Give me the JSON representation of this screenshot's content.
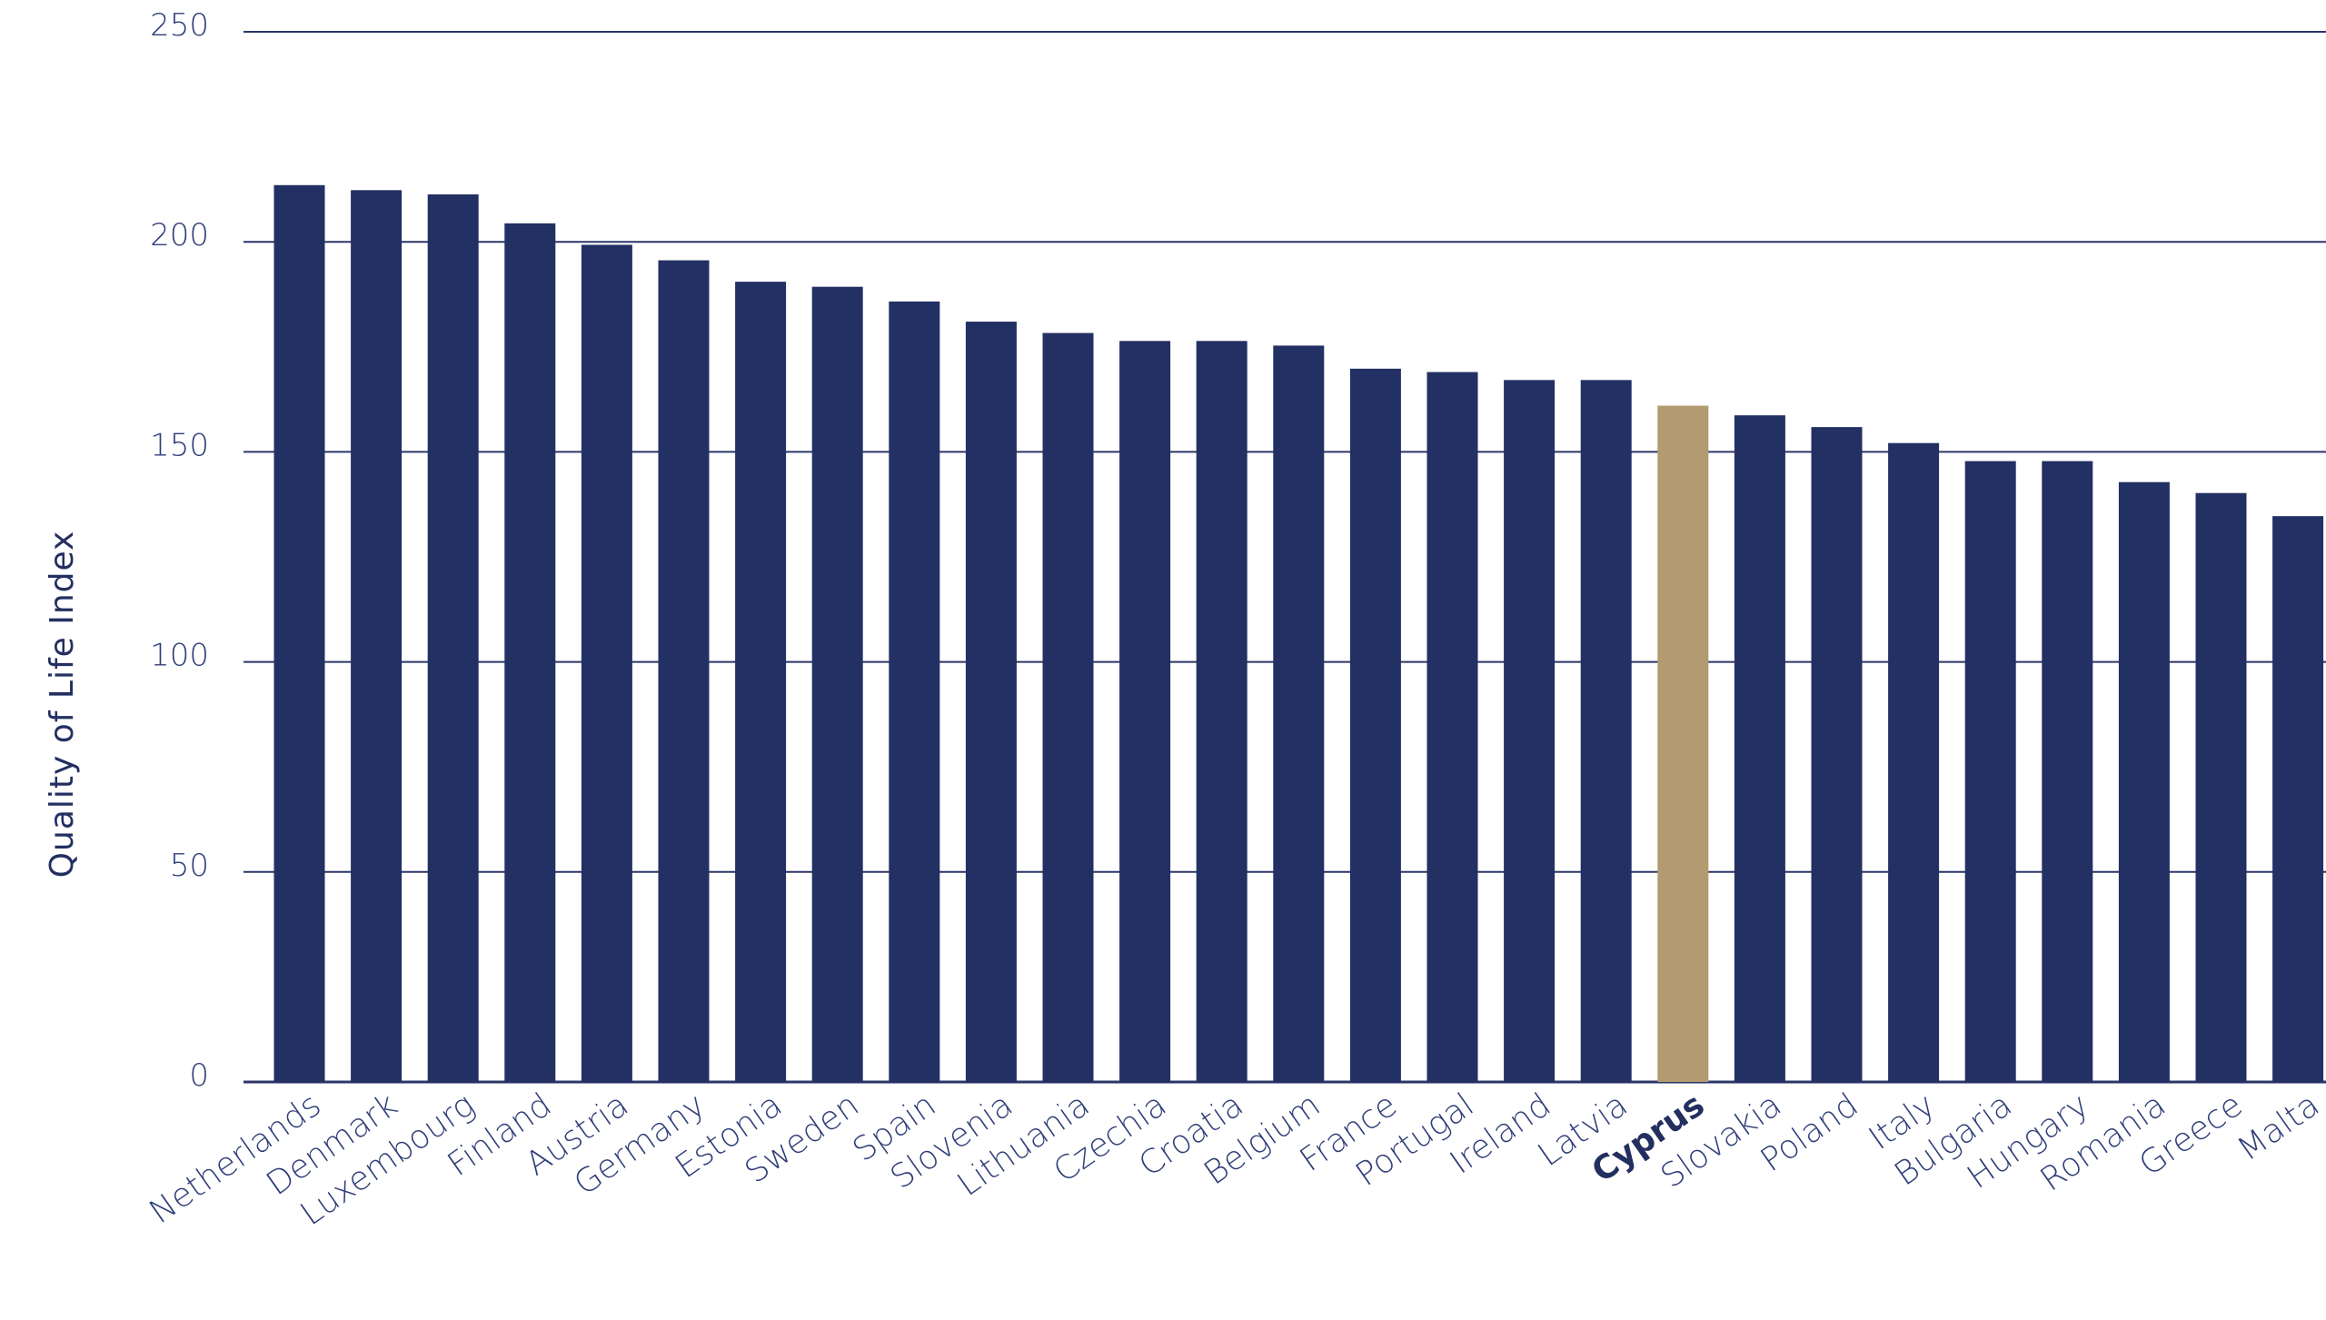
{
  "chart_data": {
    "type": "bar",
    "title": "",
    "xlabel": "",
    "ylabel": "Quality of Life Index",
    "ylim": [
      0,
      250
    ],
    "yticks": [
      0,
      50,
      100,
      150,
      200,
      250
    ],
    "grid": true,
    "highlight_category": "Cyprus",
    "colors": {
      "bar": "#233063",
      "highlight": "#b39b71",
      "grid": "#2b3668",
      "text": "#2f3e78"
    },
    "categories": [
      "Netherlands",
      "Denmark",
      "Luxembourg",
      "Finland",
      "Austria",
      "Germany",
      "Estonia",
      "Sweden",
      "Spain",
      "Slovenia",
      "Lithuania",
      "Czechia",
      "Croatia",
      "Belgium",
      "France",
      "Portugal",
      "Ireland",
      "Latvia",
      "Cyprus",
      "Slovakia",
      "Poland",
      "Italy",
      "Bulgaria",
      "Hungary",
      "Romania",
      "Greece",
      "Malta"
    ],
    "values": [
      213.5,
      212.3,
      211.3,
      204.4,
      199.3,
      195.6,
      190.5,
      189.3,
      185.8,
      181.0,
      178.3,
      176.4,
      176.4,
      175.3,
      169.8,
      169.0,
      167.1,
      167.1,
      161.0,
      158.7,
      155.9,
      152.1,
      147.8,
      147.8,
      142.8,
      140.2,
      134.7
    ]
  }
}
